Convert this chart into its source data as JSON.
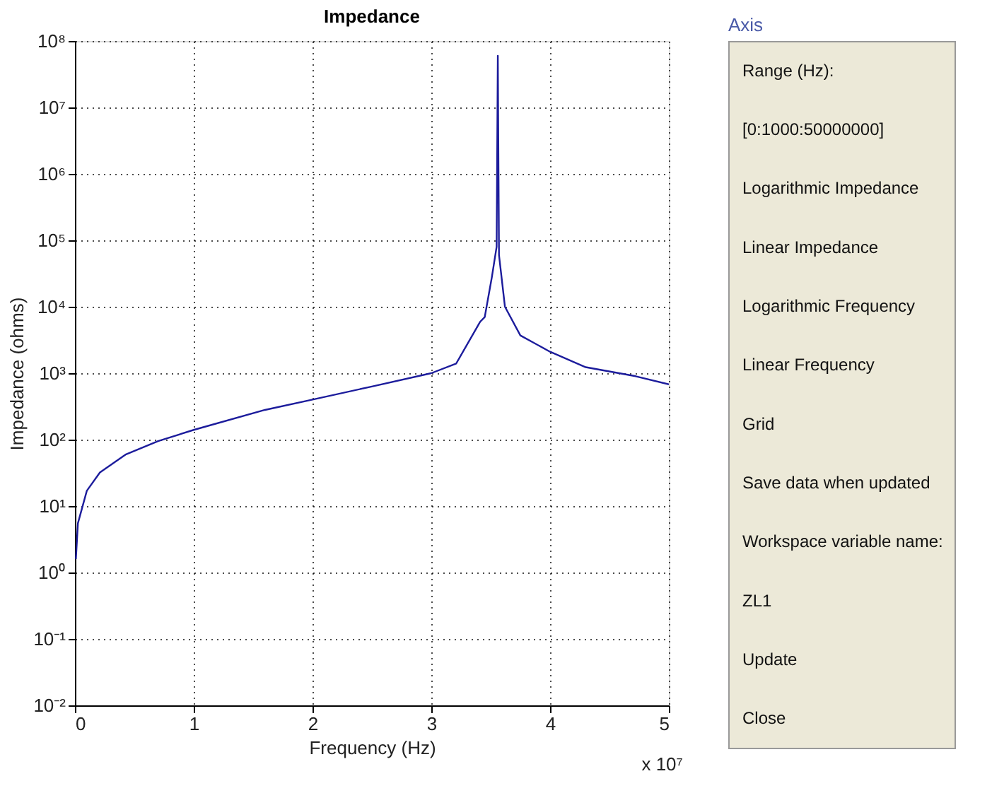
{
  "chart_data": [
    {
      "type": "line",
      "title": "Impedance",
      "xlabel": "Frequency (Hz)",
      "ylabel": "Impedance (ohms)",
      "x": [
        0.008,
        0.025,
        0.1,
        0.21,
        0.43,
        0.7,
        1.0,
        1.6,
        2.0,
        2.5,
        3.0,
        3.21,
        3.41,
        3.45,
        3.51,
        3.55,
        3.56,
        3.57,
        3.62,
        3.75,
        4.0,
        4.3,
        4.72,
        5.0
      ],
      "series": [
        {
          "color": "#1c1c9c",
          "values": [
            1.6,
            5.5,
            17,
            32,
            60,
            95,
            140,
            280,
            400,
            630,
            1000,
            1400,
            5900,
            7000,
            28000,
            80000,
            60000000,
            60000,
            10000,
            3700,
            2100,
            1230,
            900,
            680
          ]
        }
      ],
      "xlim": [
        0,
        5
      ],
      "xticks": [
        0,
        1,
        2,
        3,
        4,
        5
      ],
      "ylim": [
        0.01,
        100000000
      ],
      "yticks": [
        {
          "value": 0.01,
          "label": "10⁻²"
        },
        {
          "value": 0.1,
          "label": "10⁻¹"
        },
        {
          "value": 1,
          "label": "10⁰"
        },
        {
          "value": 10,
          "label": "10¹"
        },
        {
          "value": 100,
          "label": "10²"
        },
        {
          "value": 1000,
          "label": "10³"
        },
        {
          "value": 10000,
          "label": "10⁴"
        },
        {
          "value": 100000,
          "label": "10⁵"
        },
        {
          "value": 1000000,
          "label": "10⁶"
        },
        {
          "value": 10000000,
          "label": "10⁷"
        },
        {
          "value": 100000000,
          "label": "10⁸"
        }
      ],
      "log": "y",
      "grid": true,
      "annotations": [
        "x 10⁷"
      ]
    },
    {
      "type": "other",
      "title": "Axis",
      "annotations": [
        "Range (Hz):",
        "[0:1000:50000000]",
        "Logarithmic Impedance",
        "Linear Impedance",
        "Logarithmic Frequency",
        "Linear Frequency",
        "Grid",
        "Save data when updated",
        "Workspace variable name:",
        "ZL1",
        "Update",
        "Close"
      ]
    }
  ]
}
